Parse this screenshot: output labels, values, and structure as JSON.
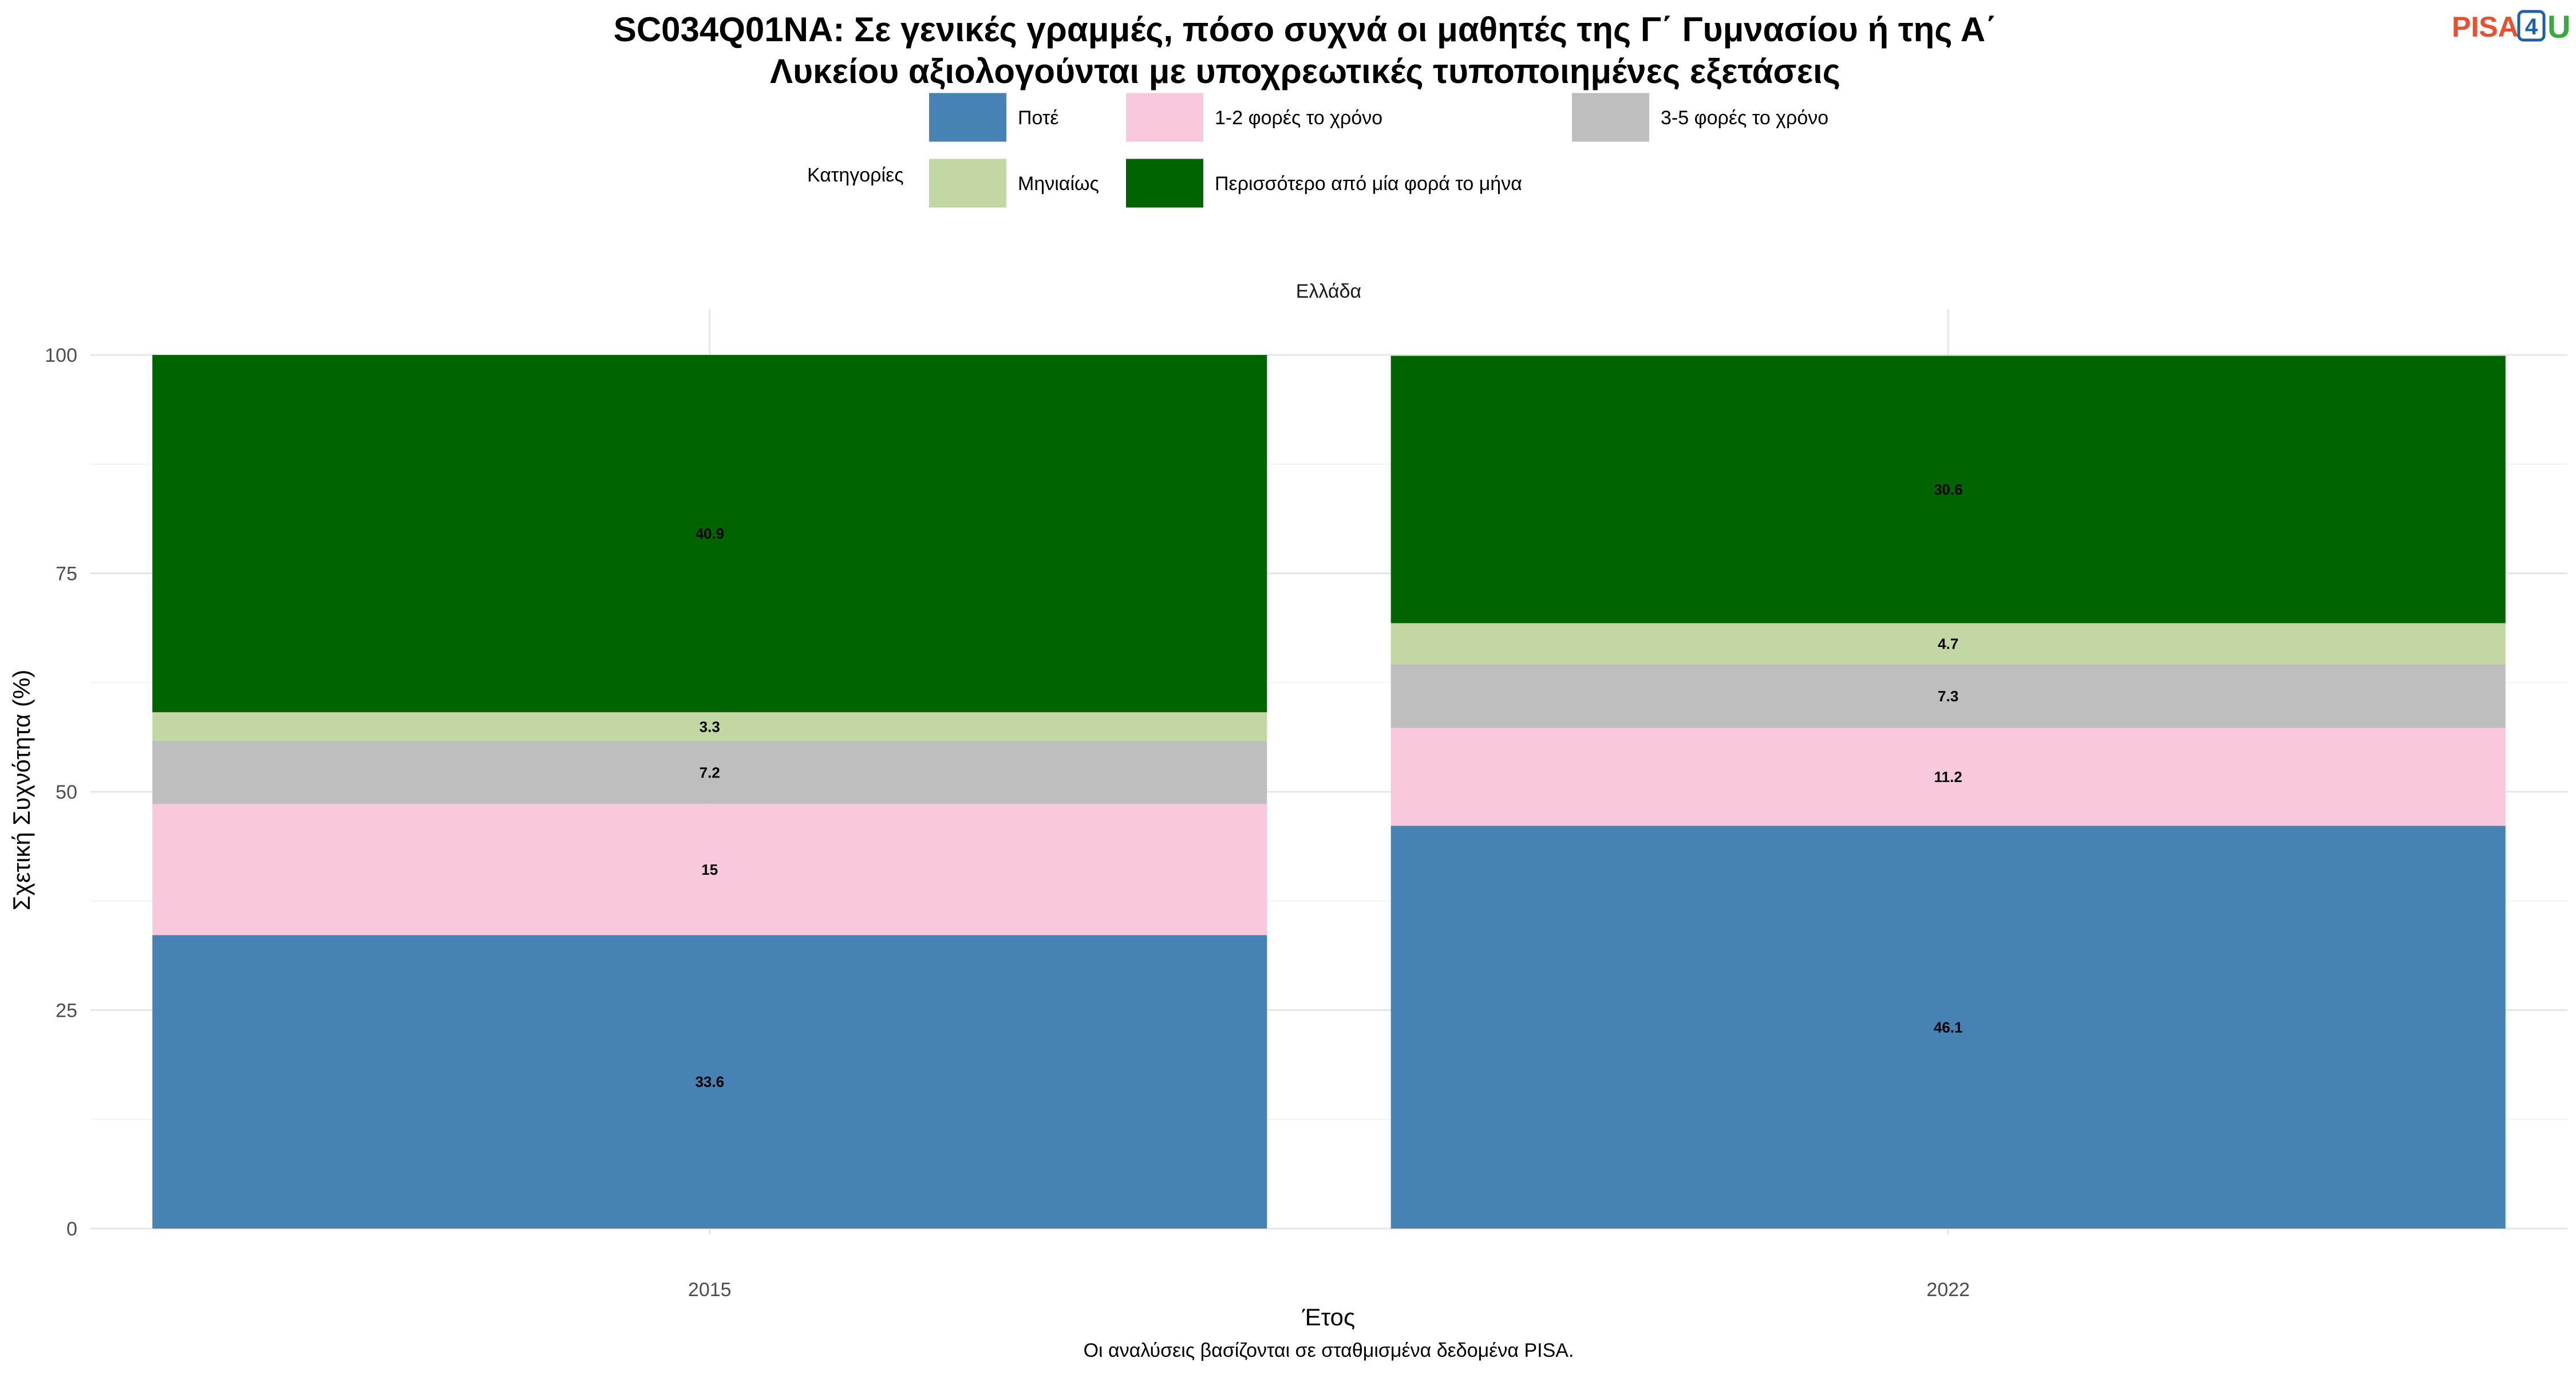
{
  "logo": {
    "pisa": "PISA",
    "four": "4",
    "u": "U"
  },
  "chart_data": {
    "type": "bar",
    "stacked": true,
    "title": "SC034Q01NA: Σε γενικές γραμμές, πόσο συχνά οι μαθητές της Γ΄ Γυμνασίου ή της Α΄ Λυκείου αξιολογούνται με υποχρεωτικές τυποποιημένες εξετάσεις",
    "title_lines": [
      "SC034Q01NA: Σε γενικές γραμμές, πόσο συχνά οι μαθητές της Γ΄ Γυμνασίου ή της Α΄",
      "Λυκείου αξιολογούνται με υποχρεωτικές τυποποιημένες εξετάσεις"
    ],
    "facet_label": "Ελλάδα",
    "xlabel": "Έτος",
    "ylabel": "Σχετική Συχνότητα (%)",
    "caption": "Οι αναλύσεις βασίζονται σε σταθμισμένα δεδομένα PISA.",
    "legend_title": "Κατηγορίες",
    "legend_position": "top",
    "grid": true,
    "ylim": [
      0,
      100
    ],
    "yticks": [
      0,
      25,
      50,
      75,
      100
    ],
    "categories": [
      "2015",
      "2022"
    ],
    "series": [
      {
        "name": "Ποτέ",
        "color": "#4682b4",
        "values": [
          33.6,
          46.1
        ],
        "labels": [
          "33.6",
          "46.1"
        ]
      },
      {
        "name": "1-2 φορές το χρόνο",
        "color": "#f8c8dc",
        "values": [
          15,
          11.2
        ],
        "labels": [
          "15",
          "11.2"
        ]
      },
      {
        "name": "3-5 φορές το χρόνο",
        "color": "#bebebe",
        "values": [
          7.2,
          7.3
        ],
        "labels": [
          "7.2",
          "7.3"
        ]
      },
      {
        "name": "Μηνιαίως",
        "color": "#c3d7a4",
        "values": [
          3.3,
          4.7
        ],
        "labels": [
          "3.3",
          "4.7"
        ]
      },
      {
        "name": "Περισσότερο από μία φορά το μήνα",
        "color": "#006400",
        "values": [
          40.9,
          30.6
        ],
        "labels": [
          "40.9",
          "30.6"
        ]
      }
    ]
  }
}
